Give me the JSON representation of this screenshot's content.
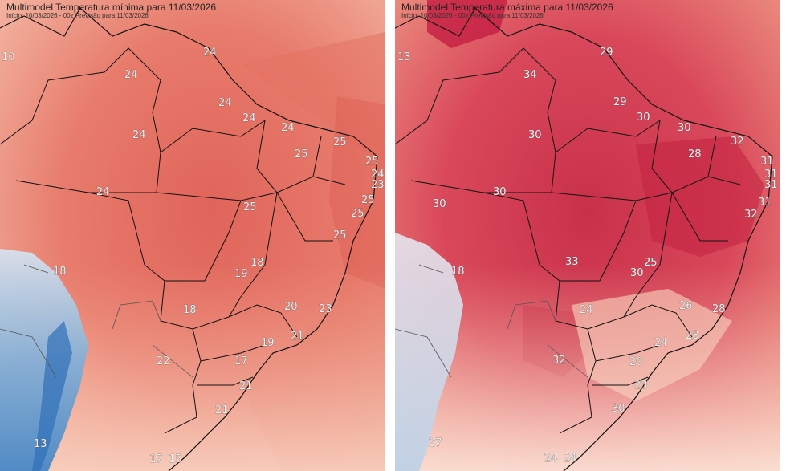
{
  "panels": [
    {
      "title": "Multimodel Temperatura mínima para 11/03/2026",
      "subtitle": "Início: 10/03/2026 - 00z  Previsão para 11/03/2026",
      "labels": [
        "10",
        "24",
        "24",
        "24",
        "24",
        "24",
        "24",
        "25",
        "25",
        "25",
        "24",
        "23",
        "24",
        "25",
        "25",
        "25",
        "18",
        "25",
        "19",
        "18",
        "20",
        "23",
        "18",
        "21",
        "19",
        "22",
        "17",
        "21",
        "21",
        "13",
        "17",
        "15"
      ]
    },
    {
      "title": "Multimodel Temperatura máxima para 11/03/2026",
      "subtitle": "Início: 10/03/2026 - 00z  Previsão para 11/03/2026",
      "labels": [
        "13",
        "34",
        "29",
        "29",
        "30",
        "30",
        "30",
        "32",
        "28",
        "31",
        "31",
        "31",
        "30",
        "31",
        "32",
        "30",
        "18",
        "33",
        "25",
        "30",
        "24",
        "26",
        "28",
        "28",
        "24",
        "32",
        "20",
        "23",
        "30",
        "27",
        "24",
        "24"
      ]
    }
  ]
}
